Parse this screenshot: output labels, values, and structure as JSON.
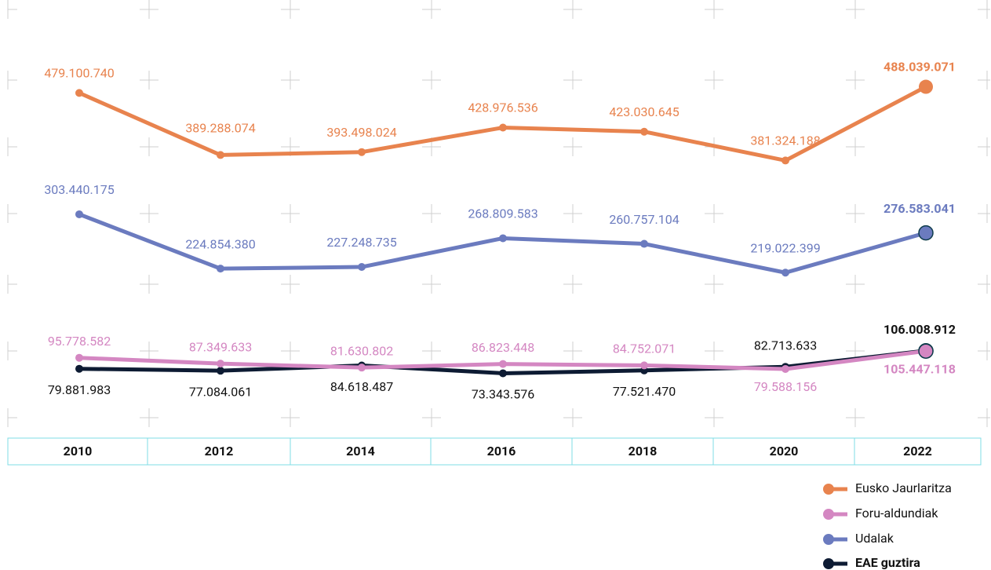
{
  "chart_data": {
    "type": "line",
    "categories": [
      "2010",
      "2012",
      "2014",
      "2016",
      "2018",
      "2020",
      "2022"
    ],
    "ylim": [
      0,
      600000000
    ],
    "series": [
      {
        "name": "Eusko Jaurlaritza",
        "color": "#e8834e",
        "values": [
          479100740,
          389288074,
          393498024,
          428976536,
          423030645,
          381324188,
          488039071
        ],
        "value_labels": [
          "479.100.740",
          "389.288.074",
          "393.498.024",
          "428.976.536",
          "423.030.645",
          "381.324.188",
          "488.039.071"
        ]
      },
      {
        "name": "Foru-aldundiak",
        "color": "#d487c2",
        "values": [
          95778582,
          87349633,
          81630802,
          86823448,
          84752071,
          79588156,
          105447118
        ],
        "value_labels": [
          "95.778.582",
          "87.349.633",
          "81.630.802",
          "86.823.448",
          "84.752.071",
          "79.588.156",
          "105.447.118"
        ]
      },
      {
        "name": "Udalak",
        "color": "#6b7bbf",
        "values": [
          303440175,
          224854380,
          227248735,
          268809583,
          260757104,
          219022399,
          276583041
        ],
        "value_labels": [
          "303.440.175",
          "224.854.380",
          "227.248.735",
          "268.809.583",
          "260.757.104",
          "219.022.399",
          "276.583.041"
        ]
      },
      {
        "name": "EAE guztira",
        "color": "#0d1b33",
        "values": [
          79881983,
          77084061,
          84618487,
          73343576,
          77521470,
          82713633,
          106008912
        ],
        "value_labels": [
          "79.881.983",
          "77.084.061",
          "84.618.487",
          "73.343.576",
          "77.521.470",
          "82.713.633",
          "106.008.912"
        ]
      }
    ]
  }
}
